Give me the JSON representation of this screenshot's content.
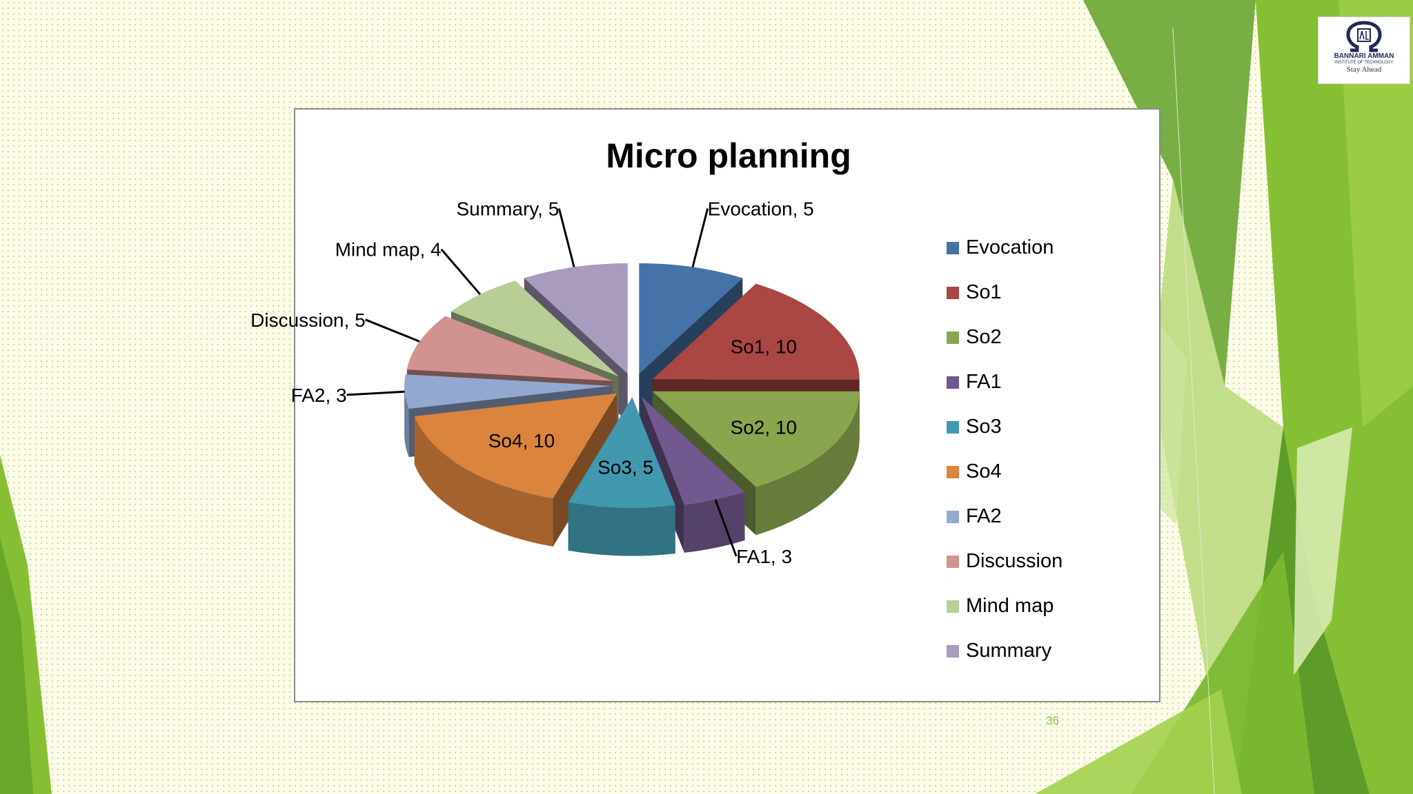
{
  "slide": {
    "page_number": "36",
    "logo": {
      "name": "BANNARI AMMAN",
      "subname": "INSTITUTE OF TECHNOLOGY",
      "tagline": "Stay Ahead"
    }
  },
  "colors": {
    "background": "#fbfbe8",
    "accent_green": "#7ab62c",
    "dark_green": "#4e8a22"
  },
  "chart_data": {
    "type": "pie",
    "style": "exploded 3D pie",
    "title": "Micro planning",
    "legend_position": "right",
    "slices": [
      {
        "name": "Evocation",
        "value": 5,
        "color": "#4572a7",
        "label": "Evocation, 5"
      },
      {
        "name": "So1",
        "value": 10,
        "color": "#aa4643",
        "label": "So1, 10"
      },
      {
        "name": "So2",
        "value": 10,
        "color": "#89a54e",
        "label": "So2, 10"
      },
      {
        "name": "FA1",
        "value": 3,
        "color": "#71588f",
        "label": "FA1, 3"
      },
      {
        "name": "So3",
        "value": 5,
        "color": "#4198af",
        "label": "So3, 5"
      },
      {
        "name": "So4",
        "value": 10,
        "color": "#db843d",
        "label": "So4, 10"
      },
      {
        "name": "FA2",
        "value": 3,
        "color": "#93a9cf",
        "label": "FA2, 3"
      },
      {
        "name": "Discussion",
        "value": 5,
        "color": "#d19392",
        "label": "Discussion, 5"
      },
      {
        "name": "Mind map",
        "value": 4,
        "color": "#b9cd96",
        "label": "Mind map, 4"
      },
      {
        "name": "Summary",
        "value": 5,
        "color": "#a99bbd",
        "label": "Summary, 5"
      }
    ]
  }
}
